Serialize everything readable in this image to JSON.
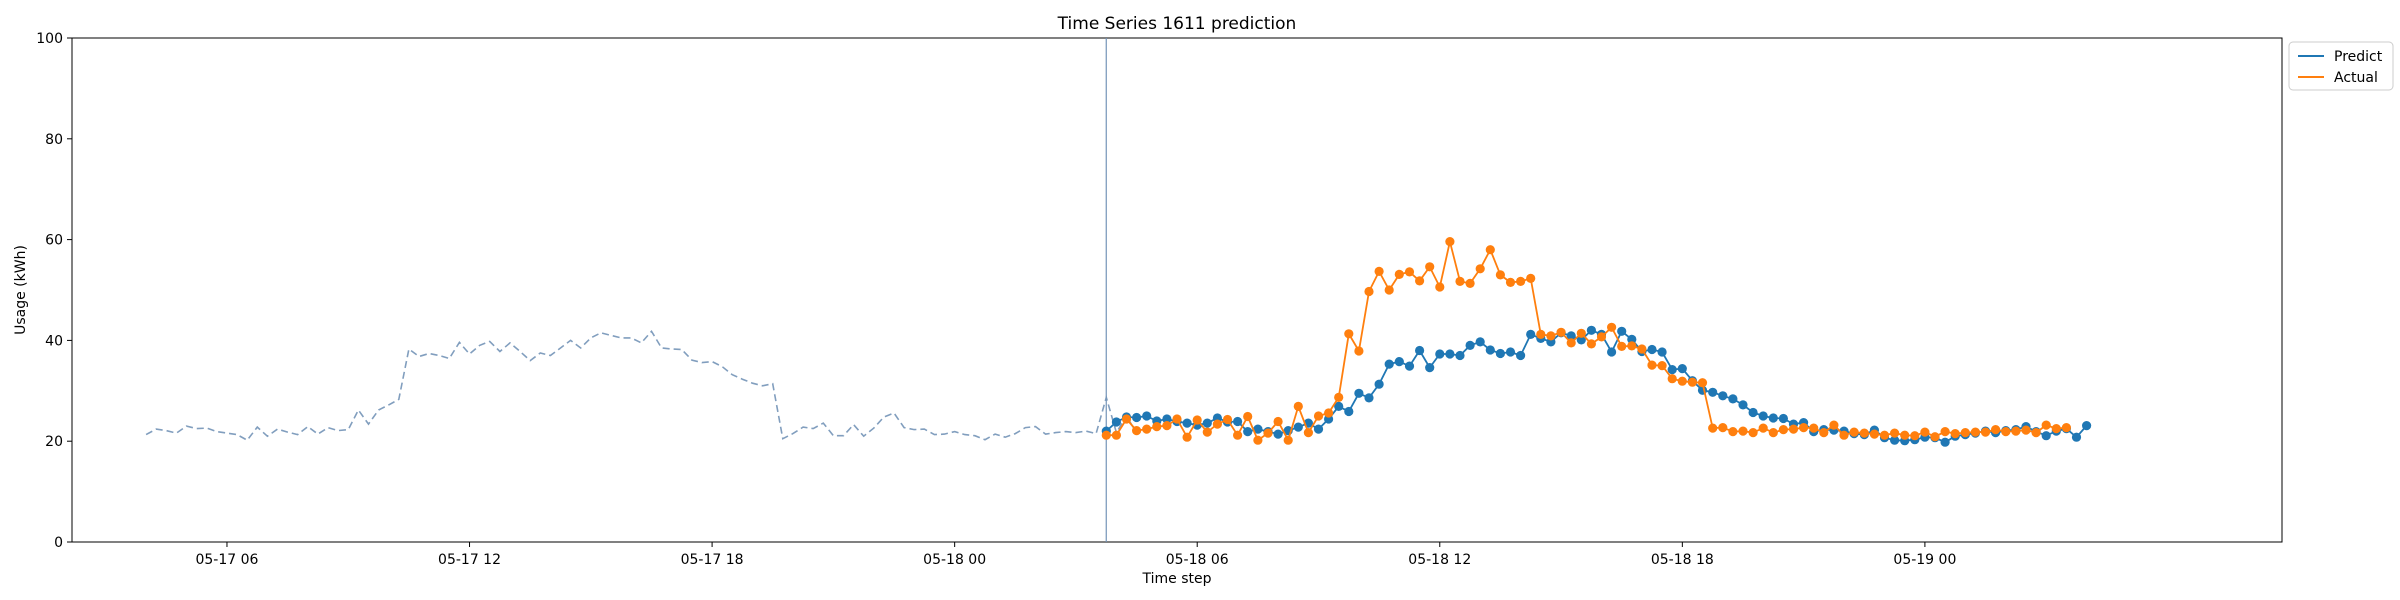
{
  "chart_data": {
    "type": "line",
    "title": "Time Series 1611 prediction",
    "xlabel": "Time step",
    "ylabel": "Usage (kWh)",
    "ylim": [
      0,
      100
    ],
    "yticks": [
      0,
      20,
      40,
      60,
      80,
      100
    ],
    "xlim": [
      "05-17 02:10",
      "05-19 08:50"
    ],
    "xticks": [
      {
        "t": "05-17 06:00",
        "label": "05-17 06"
      },
      {
        "t": "05-17 12:00",
        "label": "05-17 12"
      },
      {
        "t": "05-17 18:00",
        "label": "05-17 18"
      },
      {
        "t": "05-18 00:00",
        "label": "05-18 00"
      },
      {
        "t": "05-18 06:00",
        "label": "05-18 06"
      },
      {
        "t": "05-18 12:00",
        "label": "05-18 12"
      },
      {
        "t": "05-18 18:00",
        "label": "05-18 18"
      },
      {
        "t": "05-19 00:00",
        "label": "05-19 00"
      }
    ],
    "forecast_start": "05-18 03:45",
    "legend": {
      "position": "upper-right-outside",
      "entries": [
        "Predict",
        "Actual"
      ]
    },
    "colors": {
      "history": "#7393b7",
      "predict": "#1f77b4",
      "actual": "#ff7f0e",
      "vline": "#7393b7"
    },
    "history": {
      "start": "05-17 04:00",
      "step_minutes": 15,
      "values": [
        21.3,
        22.4,
        22.1,
        21.6,
        23.0,
        22.5,
        22.6,
        21.9,
        21.6,
        21.3,
        20.2,
        22.8,
        21.0,
        22.4,
        21.8,
        21.3,
        22.9,
        21.4,
        22.7,
        22.1,
        22.3,
        26.2,
        23.4,
        26.2,
        27.2,
        28.3,
        38.3,
        36.8,
        37.4,
        37.0,
        36.4,
        39.6,
        37.3,
        39.0,
        39.8,
        37.8,
        39.5,
        37.8,
        36.0,
        37.5,
        37.0,
        38.5,
        40.0,
        38.5,
        40.5,
        41.5,
        41.0,
        40.5,
        40.5,
        39.5,
        41.8,
        38.5,
        38.3,
        38.2,
        36.1,
        35.6,
        35.8,
        34.8,
        33.2,
        32.3,
        31.5,
        31.0,
        31.4,
        20.5,
        21.5,
        22.8,
        22.5,
        23.6,
        21.1,
        21.1,
        23.3,
        21.0,
        22.6,
        24.8,
        25.6,
        22.7,
        22.3,
        22.4,
        21.3,
        21.4,
        21.9,
        21.3,
        21.1,
        20.3,
        21.4,
        20.8,
        21.5,
        22.7,
        22.9,
        21.4,
        21.7,
        21.9,
        21.7,
        22.0,
        21.5,
        28.7,
        21.7,
        25.0,
        21.6
      ]
    },
    "series": [
      {
        "name": "Predict",
        "start": "05-18 03:45",
        "step_minutes": 15,
        "values": [
          22.0,
          23.8,
          24.8,
          24.7,
          25.0,
          24.0,
          24.4,
          23.9,
          23.6,
          23.2,
          23.6,
          24.6,
          23.8,
          23.9,
          21.9,
          22.4,
          21.9,
          21.4,
          22.1,
          22.8,
          23.6,
          22.4,
          24.4,
          26.9,
          25.9,
          29.5,
          28.6,
          31.3,
          35.3,
          35.8,
          34.9,
          38.0,
          34.6,
          37.3,
          37.3,
          37.0,
          39.0,
          39.7,
          38.1,
          37.4,
          37.7,
          37.0,
          41.2,
          40.4,
          39.7,
          41.5,
          40.9,
          40.1,
          42.0,
          41.2,
          37.7,
          41.8,
          40.2,
          37.8,
          38.2,
          37.7,
          34.2,
          34.4,
          32.0,
          30.1,
          29.7,
          29.0,
          28.4,
          27.2,
          25.7,
          25.0,
          24.6,
          24.5,
          23.4,
          23.7,
          21.9,
          22.3,
          22.2,
          22.0,
          21.5,
          21.3,
          22.2,
          20.7,
          20.2,
          20.1,
          20.3,
          20.8,
          20.7,
          19.8,
          21.0,
          21.3,
          21.6,
          22.0,
          21.7,
          22.1,
          22.3,
          22.9,
          21.9,
          21.1,
          22.0,
          22.5,
          20.8,
          23.1
        ]
      },
      {
        "name": "Actual",
        "start": "05-18 03:45",
        "step_minutes": 15,
        "values": [
          21.2,
          21.2,
          24.4,
          22.1,
          22.4,
          22.9,
          23.1,
          24.4,
          20.8,
          24.2,
          21.8,
          23.4,
          24.3,
          21.2,
          24.9,
          20.2,
          21.6,
          23.9,
          20.2,
          26.9,
          21.7,
          25.0,
          25.6,
          28.7,
          41.3,
          37.9,
          49.7,
          53.7,
          50.0,
          53.1,
          53.6,
          51.8,
          54.6,
          50.6,
          59.6,
          51.7,
          51.3,
          54.2,
          58.0,
          53.0,
          51.5,
          51.7,
          52.3,
          41.2,
          40.9,
          41.6,
          39.5,
          41.4,
          39.3,
          40.7,
          42.6,
          38.8,
          38.9,
          38.3,
          35.1,
          35.0,
          32.4,
          31.9,
          31.7,
          31.6,
          22.6,
          22.7,
          21.9,
          22.0,
          21.7,
          22.6,
          21.7,
          22.3,
          22.4,
          22.7,
          22.6,
          21.7,
          23.2,
          21.2,
          21.8,
          21.6,
          21.4,
          21.2,
          21.6,
          21.2,
          21.1,
          21.8,
          20.9,
          21.9,
          21.5,
          21.7,
          21.8,
          21.8,
          22.3,
          21.9,
          22.0,
          22.2,
          21.7,
          23.2,
          22.5,
          22.7
        ]
      }
    ]
  }
}
